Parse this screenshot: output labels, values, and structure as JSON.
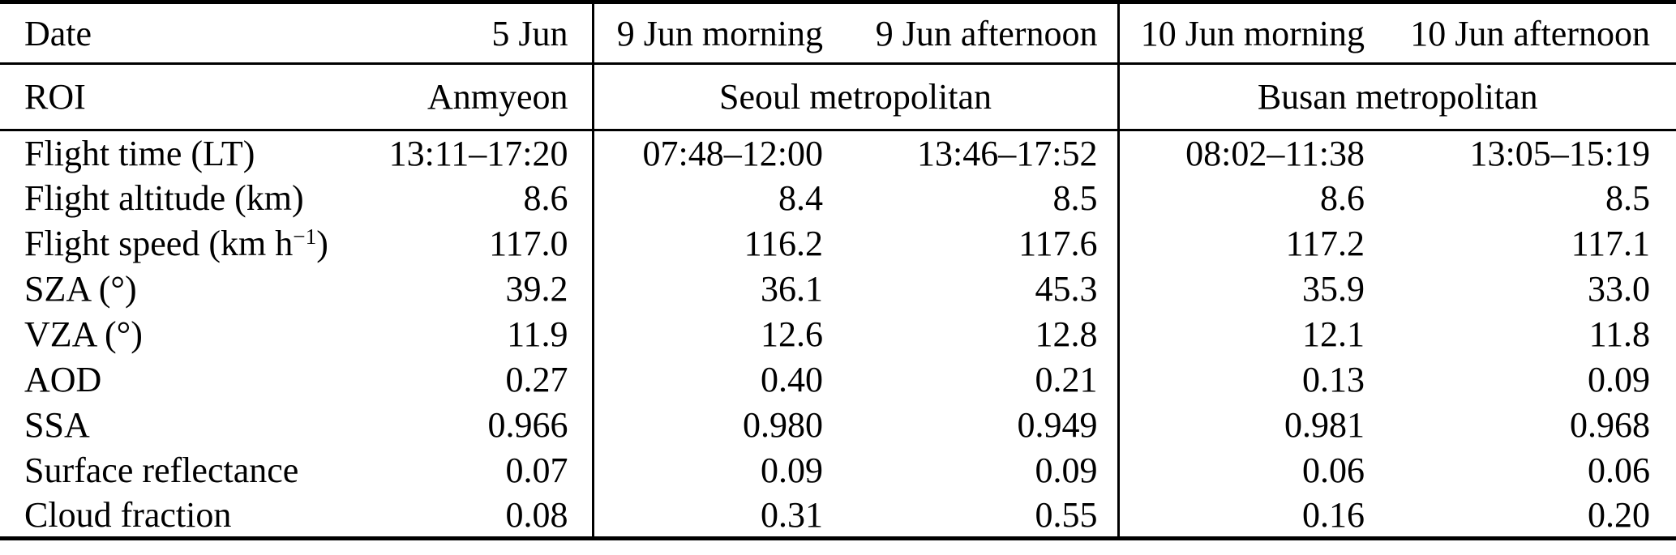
{
  "colors": {
    "text": "#000000",
    "background": "#ffffff",
    "rule": "#000000"
  },
  "header": {
    "date_label": "Date",
    "dates": [
      "5 Jun",
      "9 Jun morning",
      "9 Jun afternoon",
      "10 Jun morning",
      "10 Jun afternoon"
    ],
    "roi_label": "ROI",
    "rois": [
      "Anmyeon",
      "Seoul metropolitan",
      "Busan metropolitan"
    ]
  },
  "rows": [
    {
      "label": "Flight time (LT)",
      "values": [
        "13:11–17:20",
        "07:48–12:00",
        "13:46–17:52",
        "08:02–11:38",
        "13:05–15:19"
      ]
    },
    {
      "label": "Flight altitude (km)",
      "values": [
        "8.6",
        "8.4",
        "8.5",
        "8.6",
        "8.5"
      ]
    },
    {
      "label_pre": "Flight speed (km h",
      "label_sup": "−1",
      "label_post": ")",
      "values": [
        "117.0",
        "116.2",
        "117.6",
        "117.2",
        "117.1"
      ]
    },
    {
      "label": "SZA (°)",
      "values": [
        "39.2",
        "36.1",
        "45.3",
        "35.9",
        "33.0"
      ]
    },
    {
      "label": "VZA (°)",
      "values": [
        "11.9",
        "12.6",
        "12.8",
        "12.1",
        "11.8"
      ]
    },
    {
      "label": "AOD",
      "values": [
        "0.27",
        "0.40",
        "0.21",
        "0.13",
        "0.09"
      ]
    },
    {
      "label": "SSA",
      "values": [
        "0.966",
        "0.980",
        "0.949",
        "0.981",
        "0.968"
      ]
    },
    {
      "label": "Surface reflectance",
      "values": [
        "0.07",
        "0.09",
        "0.09",
        "0.06",
        "0.06"
      ]
    },
    {
      "label": "Cloud fraction",
      "values": [
        "0.08",
        "0.31",
        "0.55",
        "0.16",
        "0.20"
      ]
    }
  ]
}
